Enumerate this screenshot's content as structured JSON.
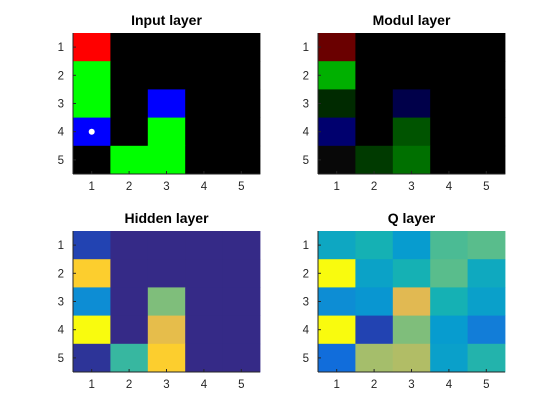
{
  "chart_data": [
    {
      "type": "heatmap",
      "title": "Input layer",
      "x": [
        1,
        2,
        3,
        4,
        5
      ],
      "y": [
        1,
        2,
        3,
        4,
        5
      ],
      "xticklabels": [
        "1",
        "2",
        "3",
        "4",
        "5"
      ],
      "yticklabels": [
        "1",
        "2",
        "3",
        "4",
        "5"
      ],
      "y_direction": "top-to-bottom",
      "marker": {
        "row": 4,
        "col": 1,
        "color": "#ffffff"
      },
      "colors": [
        [
          "#ff0000",
          "#000000",
          "#000000",
          "#000000",
          "#000000"
        ],
        [
          "#00ff00",
          "#000000",
          "#000000",
          "#000000",
          "#000000"
        ],
        [
          "#00ff00",
          "#000000",
          "#0000ff",
          "#000000",
          "#000000"
        ],
        [
          "#0000ff",
          "#000000",
          "#00ff00",
          "#000000",
          "#000000"
        ],
        [
          "#000000",
          "#00ff00",
          "#00ff00",
          "#000000",
          "#000000"
        ]
      ]
    },
    {
      "type": "heatmap",
      "title": "Modul layer",
      "x": [
        1,
        2,
        3,
        4,
        5
      ],
      "y": [
        1,
        2,
        3,
        4,
        5
      ],
      "xticklabels": [
        "1",
        "2",
        "3",
        "4",
        "5"
      ],
      "yticklabels": [
        "1",
        "2",
        "3",
        "4",
        "5"
      ],
      "y_direction": "top-to-bottom",
      "colors": [
        [
          "#6a0000",
          "#000000",
          "#000000",
          "#000000",
          "#000000"
        ],
        [
          "#00b000",
          "#000000",
          "#000000",
          "#000000",
          "#000000"
        ],
        [
          "#002a00",
          "#000000",
          "#00004a",
          "#000000",
          "#000000"
        ],
        [
          "#00006e",
          "#000000",
          "#005400",
          "#000000",
          "#000000"
        ],
        [
          "#080808",
          "#003a00",
          "#007000",
          "#000000",
          "#000000"
        ]
      ]
    },
    {
      "type": "heatmap",
      "title": "Hidden layer",
      "x": [
        1,
        2,
        3,
        4,
        5
      ],
      "y": [
        1,
        2,
        3,
        4,
        5
      ],
      "xticklabels": [
        "1",
        "2",
        "3",
        "4",
        "5"
      ],
      "yticklabels": [
        "1",
        "2",
        "3",
        "4",
        "5"
      ],
      "y_direction": "top-to-bottom",
      "colormap": "parula",
      "values": [
        [
          0.05,
          0.0,
          0.0,
          0.0,
          0.0
        ],
        [
          0.8,
          0.0,
          0.0,
          0.0,
          0.0
        ],
        [
          0.25,
          0.0,
          0.55,
          0.0,
          0.0
        ],
        [
          1.0,
          0.0,
          0.72,
          0.0,
          0.0
        ],
        [
          0.02,
          0.45,
          0.8,
          0.0,
          0.0
        ]
      ]
    },
    {
      "type": "heatmap",
      "title": "Q layer",
      "x": [
        1,
        2,
        3,
        4,
        5
      ],
      "y": [
        1,
        2,
        3,
        4,
        5
      ],
      "xticklabels": [
        "1",
        "2",
        "3",
        "4",
        "5"
      ],
      "yticklabels": [
        "1",
        "2",
        "3",
        "4",
        "5"
      ],
      "y_direction": "top-to-bottom",
      "colormap": "parula",
      "values": [
        [
          0.35,
          0.4,
          0.3,
          0.48,
          0.5
        ],
        [
          0.9,
          0.33,
          0.4,
          0.5,
          0.36
        ],
        [
          0.25,
          0.28,
          0.7,
          0.4,
          0.32
        ],
        [
          1.0,
          0.05,
          0.55,
          0.3,
          0.2
        ],
        [
          0.15,
          0.6,
          0.62,
          0.32,
          0.42
        ]
      ]
    }
  ]
}
